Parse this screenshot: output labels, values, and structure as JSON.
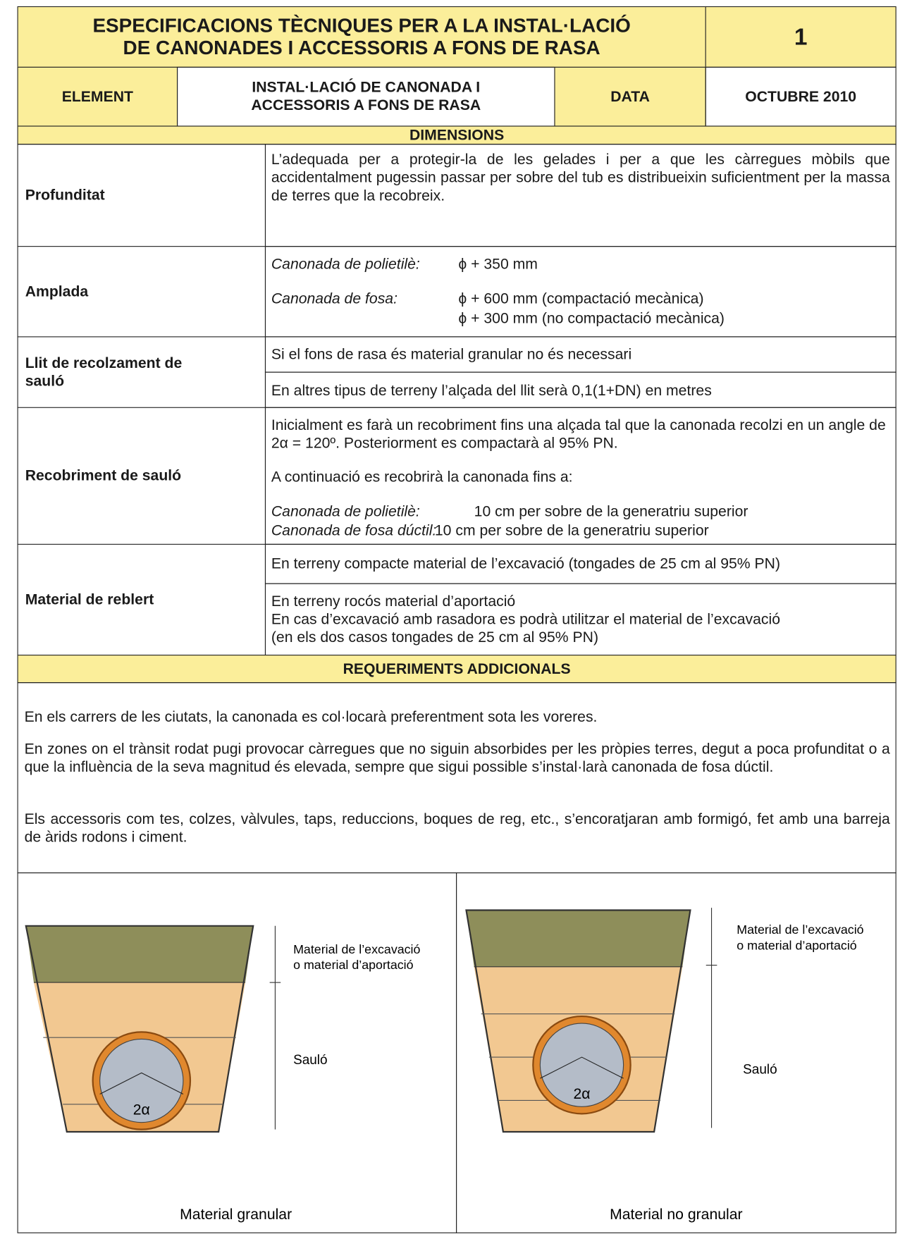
{
  "header": {
    "title": [
      "ESPECIFICACIONS TÈCNIQUES PER A LA INSTAL·LACIÓ",
      "DE CANONADES I ACCESSORIS A FONS DE RASA"
    ],
    "number": "1"
  },
  "meta": {
    "element_label": "ELEMENT",
    "element_value": [
      "INSTAL·LACIÓ DE CANONADA I",
      "ACCESSORIS A FONS DE RASA"
    ],
    "date_label": "DATA",
    "date_value": "OCTUBRE 2010"
  },
  "dimensions": {
    "heading": "DIMENSIONS",
    "profunditat": {
      "label": "Profunditat",
      "text": "L’adequada per a protegir-la de les gelades i per a que les càrregues mòbils que accidentalment pugessin passar per sobre del tub es distribueixin suficientment per la massa de terres que la recobreix."
    },
    "amplada": {
      "label": "Amplada",
      "items": [
        {
          "term": "Canonada de polietilè:",
          "values": [
            "ϕ + 350 mm"
          ]
        },
        {
          "term": "Canonada de fosa:",
          "values": [
            "ϕ + 600 mm (compactació mecànica)",
            "ϕ + 300 mm (no compactació mecànica)"
          ]
        }
      ]
    },
    "llit": {
      "label": "Llit de recolzament de sauló",
      "texts": [
        "Si el fons de rasa és material granular no és necessari",
        "En altres tipus de terreny l’alçada del llit serà 0,1(1+DN) en metres"
      ]
    },
    "recobriment": {
      "label": "Recobriment de sauló",
      "texts": [
        "Inicialment es farà un recobriment fins una alçada tal que la canonada recolzi en un angle de 2α = 120º. Posteriorment es compactarà al 95% PN.",
        "A continuació es recobrirà la canonada fins a:"
      ],
      "items": [
        {
          "term": "Canonada de polietilè:",
          "value": "10 cm per sobre de la generatriu superior"
        },
        {
          "term": "Canonada de fosa dúctil:",
          "value": "10 cm per sobre de la generatriu superior"
        }
      ]
    },
    "reblert": {
      "label": "Material de reblert",
      "cells": [
        [
          "En terreny compacte material de l’excavació (tongades de 25 cm al 95% PN)"
        ],
        [
          "En terreny rocós material d’aportació",
          "En cas d’excavació amb rasadora es podrà utilitzar el material de l’excavació",
          "(en els dos casos tongades de 25 cm al 95% PN)"
        ]
      ]
    }
  },
  "requeriments": {
    "heading": "REQUERIMENTS ADDICIONALS",
    "paragraphs": [
      "En els carrers de les ciutats, la canonada es col·locarà preferentment sota les voreres.",
      "En zones on el trànsit rodat pugi provocar càrregues que no siguin absorbides per les pròpies terres, degut a poca profunditat o a que la influència de la seva magnitud és elevada, sempre que sigui possible s’instal·larà canonada de fosa dúctil.",
      "Els accessoris com tes, colzes, vàlvules, taps, reduccions, boques de reg, etc., s’encoratjaran amb formigó, fet amb una barreja de àrids rodons i ciment."
    ]
  },
  "figures": [
    {
      "top_label": [
        "Material de l’excavació",
        "o material d’aportació"
      ],
      "bottom_label": "Sauló",
      "angle": "2α",
      "caption": "Material granular"
    },
    {
      "top_label": [
        "Material de l’excavació",
        "o material d’aportació"
      ],
      "bottom_label": "Sauló",
      "angle": "2α",
      "caption": "Material no granular"
    }
  ]
}
